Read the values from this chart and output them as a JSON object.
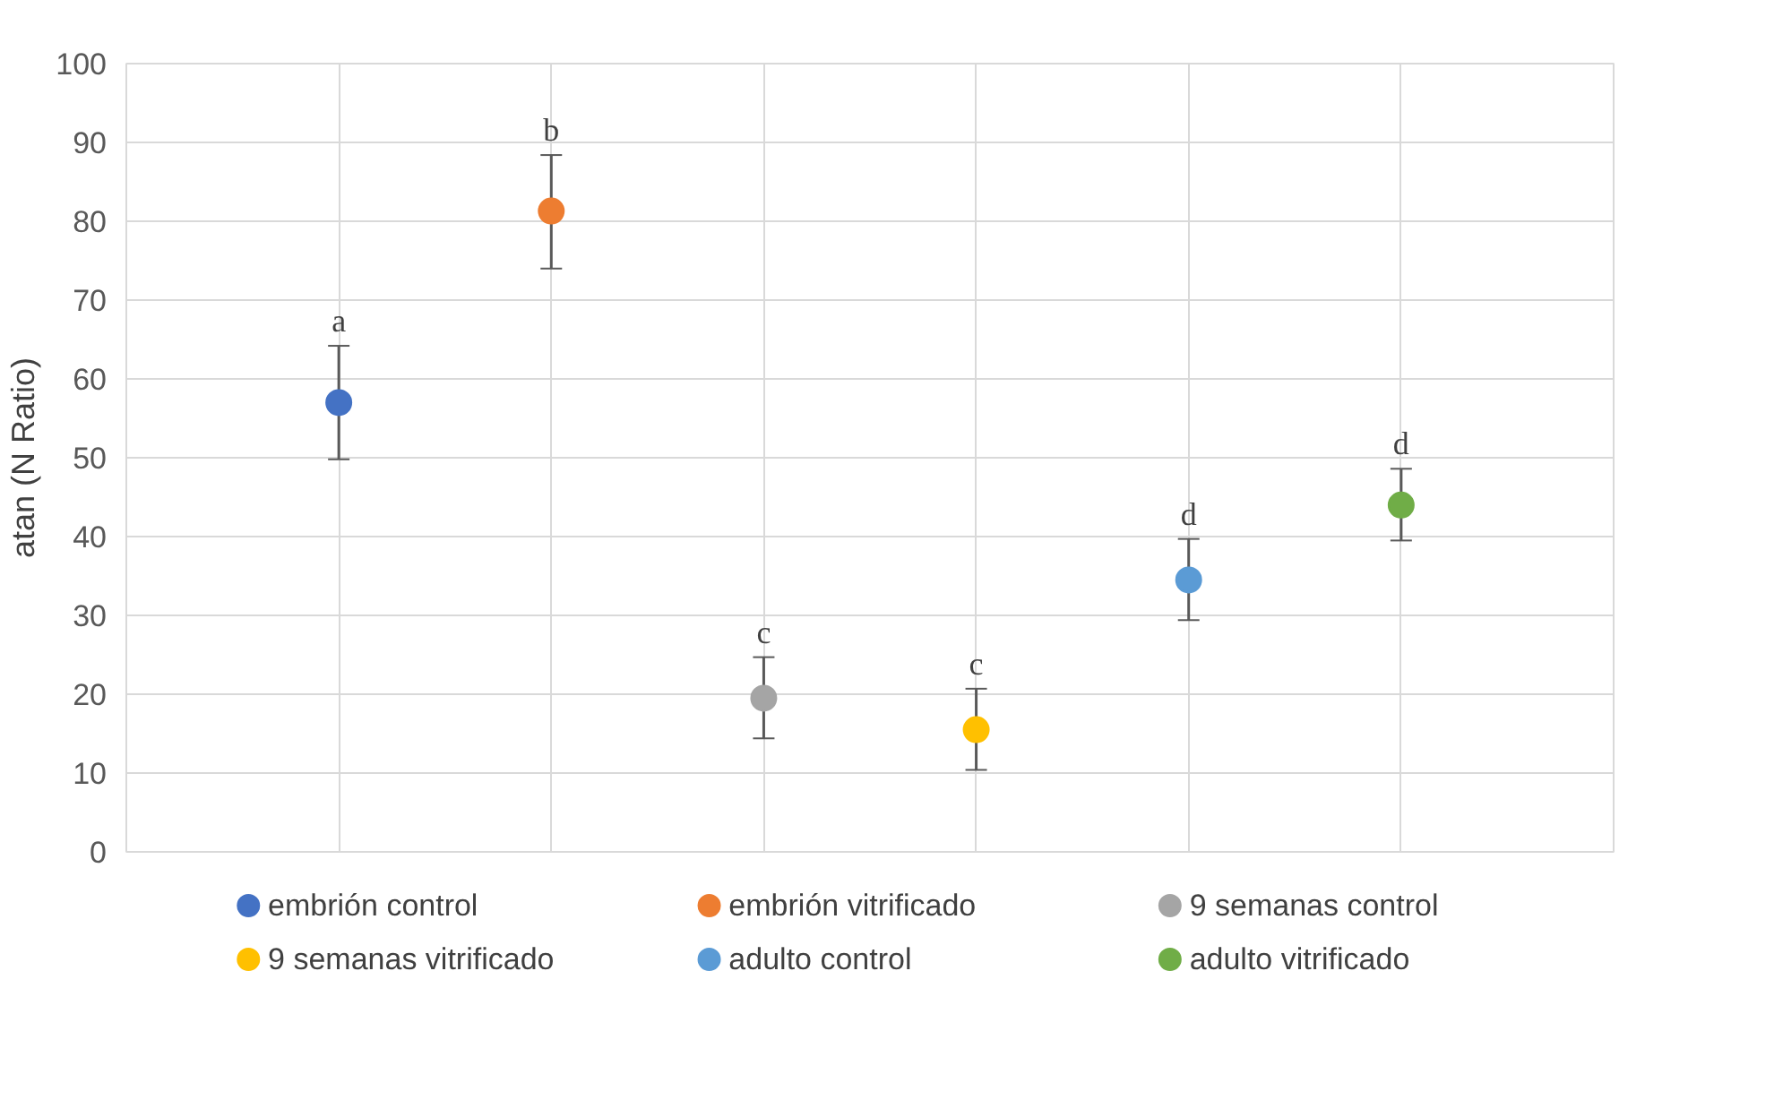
{
  "chart_data": {
    "type": "scatter",
    "ylabel": "atan (N Ratio)",
    "categories": [
      null,
      null,
      null,
      null,
      null,
      null
    ],
    "series": [
      {
        "name": "embrión control",
        "color": "#4472c4",
        "values": [
          57,
          null,
          null,
          null,
          null,
          null
        ],
        "errors": [
          [
            49.8,
            64.2
          ],
          null,
          null,
          null,
          null,
          null
        ],
        "value_labels": [
          "a",
          null,
          null,
          null,
          null,
          null
        ]
      },
      {
        "name": "embrión vitrificado",
        "color": "#ed7d31",
        "values": [
          null,
          81.3,
          null,
          null,
          null,
          null
        ],
        "errors": [
          null,
          [
            74,
            88.4
          ],
          null,
          null,
          null,
          null
        ],
        "value_labels": [
          null,
          "b",
          null,
          null,
          null,
          null
        ]
      },
      {
        "name": "9 semanas control",
        "color": "#a5a5a5",
        "values": [
          null,
          null,
          19.5,
          null,
          null,
          null
        ],
        "errors": [
          null,
          null,
          [
            14.4,
            24.7
          ],
          null,
          null,
          null
        ],
        "value_labels": [
          null,
          null,
          "c",
          null,
          null,
          null
        ]
      },
      {
        "name": "9 semanas vitrificado",
        "color": "#ffc000",
        "values": [
          null,
          null,
          null,
          15.5,
          null,
          null
        ],
        "errors": [
          null,
          null,
          null,
          [
            10.4,
            20.7
          ],
          null,
          null
        ],
        "value_labels": [
          null,
          null,
          null,
          "c",
          null,
          null
        ]
      },
      {
        "name": "adulto control",
        "color": "#5b9bd5",
        "values": [
          null,
          null,
          null,
          null,
          34.5,
          null
        ],
        "errors": [
          null,
          null,
          null,
          null,
          [
            29.4,
            39.7
          ],
          null
        ],
        "value_labels": [
          null,
          null,
          null,
          null,
          "d",
          null
        ]
      },
      {
        "name": "adulto vitrificado",
        "color": "#70ad47",
        "values": [
          null,
          null,
          null,
          null,
          null,
          44
        ],
        "errors": [
          null,
          null,
          null,
          null,
          null,
          [
            39.5,
            48.6
          ]
        ],
        "value_labels": [
          null,
          null,
          null,
          null,
          null,
          "d"
        ]
      }
    ],
    "ylim": [
      0,
      100
    ],
    "yticks": [
      0,
      10,
      20,
      30,
      40,
      50,
      60,
      70,
      80,
      90,
      100
    ],
    "grid": true,
    "legend": "bottom",
    "marker": "circle"
  }
}
